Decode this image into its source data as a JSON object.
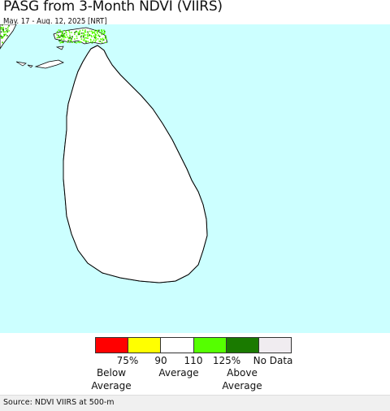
{
  "header": {
    "title": "PASG from 3-Month NDVI (VIIRS)",
    "subtitle": "May. 17 - Aug. 12, 2025 [NRT]"
  },
  "colors": {
    "water": "#ccffff",
    "land_base": "#ffffff",
    "very_low": "#ff0000",
    "low": "#ffff00",
    "normal": "#ffffff",
    "high": "#55ff00",
    "very_high": "#1a7a00",
    "no_data": "#f0ecf0"
  },
  "legend": {
    "swatches": [
      {
        "color": "#ff0000"
      },
      {
        "color": "#ffff00"
      },
      {
        "color": "#ffffff"
      },
      {
        "color": "#55ff00"
      },
      {
        "color": "#1a7a00"
      },
      {
        "color": "#f0ecf0"
      }
    ],
    "ticks": [
      "75%",
      "90",
      "110",
      "125%",
      "No Data"
    ],
    "captions": {
      "below_line1": "Below",
      "below_line2": "Average",
      "average": "Average",
      "above_line1": "Above",
      "above_line2": "Average"
    }
  },
  "footer": {
    "source": "Source: NDVI VIIRS at 500-m"
  }
}
